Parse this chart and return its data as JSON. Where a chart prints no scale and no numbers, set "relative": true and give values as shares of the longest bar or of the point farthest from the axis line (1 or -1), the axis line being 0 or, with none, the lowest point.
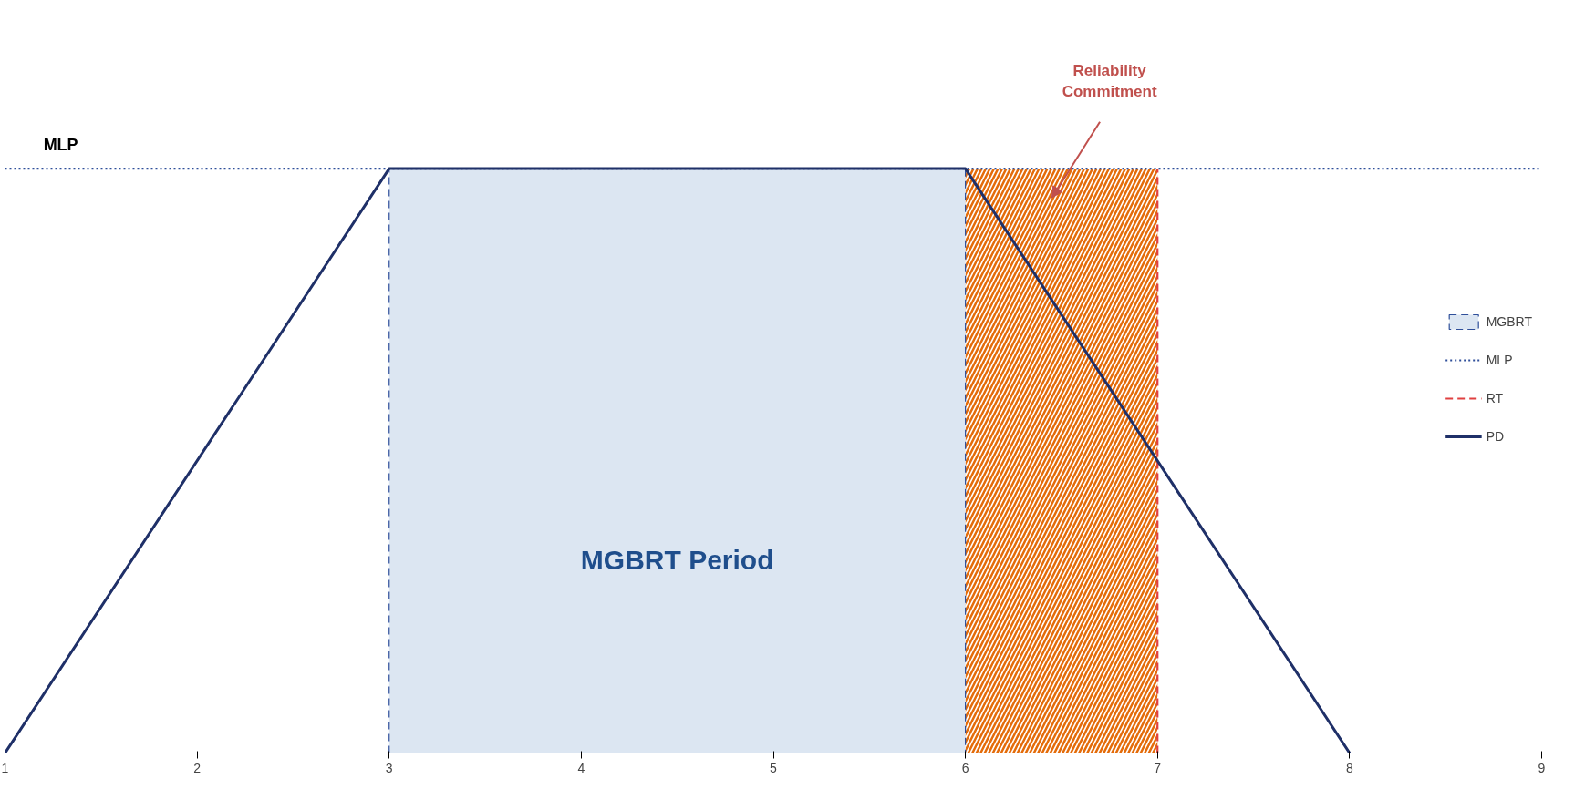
{
  "chart_data": {
    "type": "line",
    "relative": true,
    "xlim": [
      1,
      9
    ],
    "xticks": [
      1,
      2,
      3,
      4,
      5,
      6,
      7,
      8,
      9
    ],
    "grid": false,
    "legend": "right",
    "series": [
      {
        "name": "MGBRT",
        "type": "area",
        "color": "#dce6f2",
        "line_style": "dashed",
        "x": [
          3,
          6
        ],
        "values": [
          1,
          1
        ]
      },
      {
        "name": "MLP",
        "color": "#2f4f9a",
        "line_style": "dotted",
        "x": [
          1,
          9
        ],
        "values": [
          1,
          1
        ]
      },
      {
        "name": "RT",
        "color": "#e04040",
        "line_style": "dashed",
        "x": [
          7,
          7
        ],
        "values": [
          0,
          1
        ]
      },
      {
        "name": "PD",
        "color": "#1f3068",
        "line_style": "solid",
        "x": [
          1,
          3,
          6,
          8
        ],
        "values": [
          0,
          1,
          1,
          0
        ]
      }
    ],
    "bands": [
      {
        "axis": "x",
        "from": 6,
        "to": 7,
        "color": "#e46c0a"
      }
    ],
    "annotations": [
      "MLP",
      "MGBRT Period",
      "Reliability\nCommitment"
    ]
  }
}
